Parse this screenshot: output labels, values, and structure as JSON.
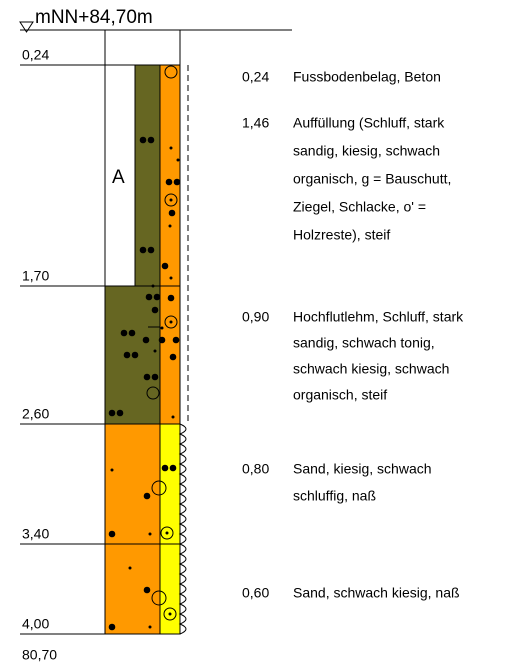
{
  "header": {
    "elevation": "mNN+84,70m"
  },
  "depths": [
    "0,24",
    "1,70",
    "2,60",
    "3,40",
    "4,00"
  ],
  "bottom": "80,70",
  "column_label": "A",
  "layers": [
    {
      "thickness": "0,24",
      "lines": [
        "Fussbodenbelag, Beton"
      ]
    },
    {
      "thickness": "1,46",
      "lines": [
        "Auffüllung (Schluff, stark",
        "sandig, kiesig, schwach",
        "organisch, g = Bauschutt,",
        "Ziegel, Schlacke, o' =",
        "Holzreste), steif"
      ]
    },
    {
      "thickness": "0,90",
      "lines": [
        "Hochflutlehm, Schluff, stark",
        "sandig, schwach tonig,",
        "schwach kiesig, schwach",
        "organisch, steif"
      ]
    },
    {
      "thickness": "0,80",
      "lines": [
        "Sand, kiesig, schwach",
        "schluffig, naß"
      ]
    },
    {
      "thickness": "0,60",
      "lines": [
        "Sand, schwach kiesig, naß"
      ]
    }
  ]
}
